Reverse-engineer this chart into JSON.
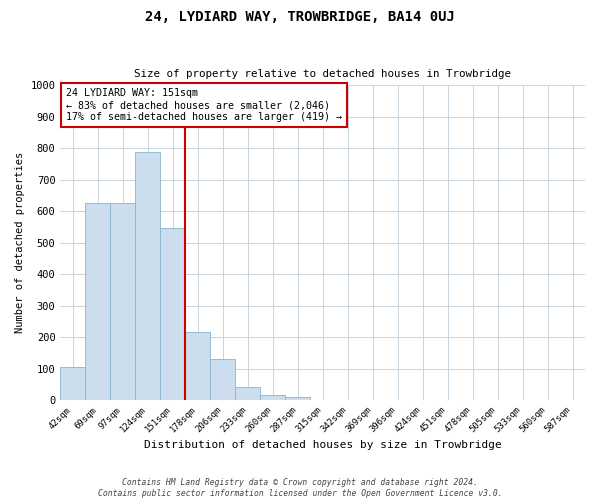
{
  "title": "24, LYDIARD WAY, TROWBRIDGE, BA14 0UJ",
  "subtitle": "Size of property relative to detached houses in Trowbridge",
  "xlabel": "Distribution of detached houses by size in Trowbridge",
  "ylabel": "Number of detached properties",
  "bar_labels": [
    "42sqm",
    "69sqm",
    "97sqm",
    "124sqm",
    "151sqm",
    "178sqm",
    "206sqm",
    "233sqm",
    "260sqm",
    "287sqm",
    "315sqm",
    "342sqm",
    "369sqm",
    "396sqm",
    "424sqm",
    "451sqm",
    "478sqm",
    "505sqm",
    "533sqm",
    "560sqm",
    "587sqm"
  ],
  "bar_values": [
    107,
    625,
    625,
    790,
    548,
    217,
    133,
    44,
    17,
    10,
    0,
    0,
    0,
    0,
    0,
    0,
    0,
    0,
    0,
    0,
    0
  ],
  "bar_color": "#ccdded",
  "bar_edge_color": "#8ab4cc",
  "vline_color": "#cc0000",
  "annotation_line1": "24 LYDIARD WAY: 151sqm",
  "annotation_line2": "← 83% of detached houses are smaller (2,046)",
  "annotation_line3": "17% of semi-detached houses are larger (419) →",
  "annotation_box_color": "#ffffff",
  "annotation_box_edge": "#cc0000",
  "ylim": [
    0,
    1000
  ],
  "yticks": [
    0,
    100,
    200,
    300,
    400,
    500,
    600,
    700,
    800,
    900,
    1000
  ],
  "footnote1": "Contains HM Land Registry data © Crown copyright and database right 2024.",
  "footnote2": "Contains public sector information licensed under the Open Government Licence v3.0.",
  "background_color": "#ffffff",
  "grid_color": "#c8d4df"
}
